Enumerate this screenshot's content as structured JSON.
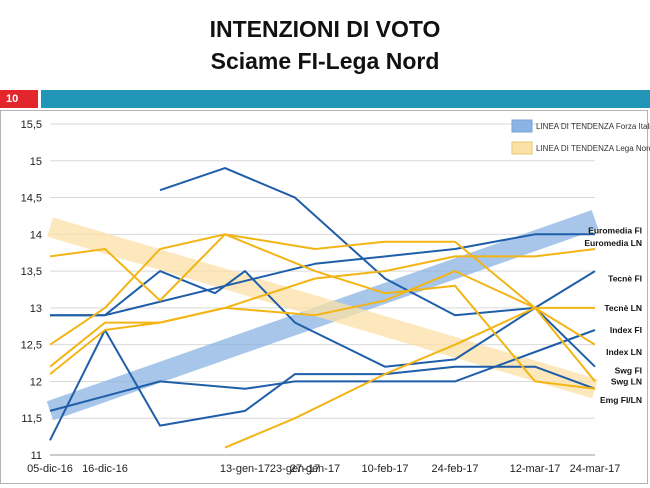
{
  "header": {
    "title_line1": "INTENZIONI DI VOTO",
    "title_line2": "Sciame FI-Lega Nord",
    "slide_number": "10"
  },
  "colors": {
    "fi": "#1f5ea8",
    "ln": "#f2b515",
    "trend_fi": "#8ab4e3",
    "trend_ln": "#fbe1a6",
    "slide_red": "#e3262b",
    "slide_blue": "#2196b7"
  },
  "chart_data": {
    "type": "line",
    "title": "INTENZIONI DI VOTO - Sciame FI-Lega Nord",
    "categories": [
      "05-dic-16",
      "16-dic-16",
      "13-gen-17",
      "23-gen-17",
      "27-gen-17",
      "10-feb-17",
      "24-feb-17",
      "12-mar-17",
      "24-mar-17"
    ],
    "x": [
      0,
      11,
      39,
      49,
      53,
      67,
      81,
      97,
      109
    ],
    "ylim": [
      11,
      15.5
    ],
    "yticks": [
      11,
      11.5,
      12,
      12.5,
      13,
      13.5,
      14,
      14.5,
      15,
      15.5
    ],
    "ytick_labels": [
      "11",
      "11,5",
      "12",
      "12,5",
      "13",
      "13,5",
      "14",
      "14,5",
      "15",
      "15,5"
    ],
    "legend": [
      {
        "label": "LINEA DI TENDENZA  Forza Italia",
        "series": "trend_fi"
      },
      {
        "label": "LINEA DI TENDENZA  Lega Nord",
        "series": "trend_ln"
      }
    ],
    "trend_lines": [
      {
        "name": "trend_fi",
        "x": [
          0,
          109
        ],
        "y": [
          11.6,
          14.2
        ]
      },
      {
        "name": "trend_ln",
        "x": [
          0,
          109
        ],
        "y": [
          14.1,
          11.9
        ]
      }
    ],
    "series": [
      {
        "name": "Euromedia FI",
        "party": "fi",
        "x": [
          0,
          11,
          53,
          81,
          97,
          109
        ],
        "y": [
          12.9,
          12.9,
          13.6,
          13.8,
          14.0,
          14.0
        ]
      },
      {
        "name": "Tecnè FI",
        "party": "fi",
        "x": [
          0,
          11,
          22,
          39,
          49,
          67,
          81,
          97,
          109
        ],
        "y": [
          11.6,
          11.8,
          12.0,
          11.9,
          12.0,
          12.0,
          12.0,
          12.4,
          12.7
        ]
      },
      {
        "name": "Index FI",
        "party": "fi",
        "x": [
          0,
          11,
          22,
          39,
          49,
          67,
          81,
          97,
          109
        ],
        "y": [
          11.2,
          12.7,
          11.4,
          11.6,
          12.1,
          12.1,
          12.2,
          12.2,
          11.9
        ]
      },
      {
        "name": "Swg FI",
        "party": "fi",
        "x": [
          0,
          11,
          22,
          33,
          39,
          49,
          67,
          81,
          97,
          109
        ],
        "y": [
          12.9,
          12.9,
          13.5,
          13.2,
          13.5,
          12.8,
          12.2,
          12.3,
          13.0,
          13.5
        ]
      },
      {
        "name": "Emg FI",
        "party": "fi",
        "x": [
          22,
          35,
          49,
          67,
          81,
          97,
          109
        ],
        "y": [
          14.6,
          14.9,
          14.5,
          13.4,
          12.9,
          13.0,
          12.2
        ]
      },
      {
        "name": "Euromedia LN",
        "party": "ln",
        "x": [
          0,
          11,
          22,
          35,
          53,
          67,
          81,
          97,
          109
        ],
        "y": [
          13.7,
          13.8,
          13.1,
          14.0,
          13.8,
          13.9,
          13.9,
          13.0,
          12.5
        ]
      },
      {
        "name": "Tecnè LN",
        "party": "ln",
        "x": [
          0,
          11,
          22,
          35,
          53,
          67,
          81,
          97,
          109
        ],
        "y": [
          12.1,
          12.7,
          12.8,
          13.0,
          12.9,
          13.1,
          13.5,
          13.0,
          13.0
        ]
      },
      {
        "name": "Index LN",
        "party": "ln",
        "x": [
          0,
          11,
          22,
          35,
          53,
          67,
          81,
          97,
          109
        ],
        "y": [
          12.5,
          13.0,
          13.8,
          14.0,
          13.5,
          13.2,
          13.3,
          12.0,
          11.9
        ]
      },
      {
        "name": "Swg LN",
        "party": "ln",
        "x": [
          0,
          11,
          22,
          35,
          53,
          67,
          81,
          97,
          109
        ],
        "y": [
          12.2,
          12.8,
          12.8,
          13.0,
          13.4,
          13.5,
          13.7,
          13.7,
          13.8
        ]
      },
      {
        "name": "Emg LN",
        "party": "ln",
        "x": [
          35,
          49,
          67,
          81,
          97,
          109
        ],
        "y": [
          11.1,
          11.5,
          12.1,
          12.5,
          13.0,
          12.0
        ]
      }
    ],
    "end_labels": [
      {
        "text": "Euromedia FI",
        "y": 14.05
      },
      {
        "text": "Euromedia LN",
        "y": 13.88
      },
      {
        "text": "Tecnè LN",
        "y": 13.0
      },
      {
        "text": "Index FI",
        "y": 12.7
      },
      {
        "text": "Index LN",
        "y": 12.4
      },
      {
        "text": "Swg FI",
        "y": 12.15
      },
      {
        "text": "Swg LN",
        "y": 12.0
      },
      {
        "text": "Emg FI/LN",
        "y": 11.75
      },
      {
        "text": "Tecnè FI",
        "y": 13.4
      }
    ]
  }
}
